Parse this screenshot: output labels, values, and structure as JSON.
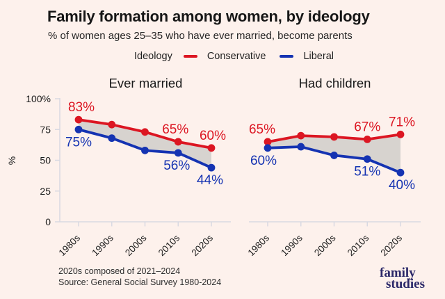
{
  "header": {
    "title": "Family formation among women, by ideology",
    "subtitle": "% of women ages 25–35 who have ever married, become parents"
  },
  "legend": {
    "label": "Ideology",
    "items": [
      {
        "name": "Conservative",
        "color": "#dc1622"
      },
      {
        "name": "Liberal",
        "color": "#1533b2"
      }
    ]
  },
  "chart_data": [
    {
      "type": "line",
      "title": "Ever married",
      "categories": [
        "1980s",
        "1990s",
        "2000s",
        "2010s",
        "2020s"
      ],
      "series": [
        {
          "name": "Conservative",
          "color": "#dc1622",
          "values": [
            83,
            79,
            73,
            65,
            60
          ],
          "point_labels": [
            {
              "i": 0,
              "text": "83%",
              "pos": "above",
              "dx": 4
            },
            {
              "i": 3,
              "text": "65%",
              "pos": "above",
              "dx": -4
            },
            {
              "i": 4,
              "text": "60%",
              "pos": "above",
              "dx": 2
            }
          ]
        },
        {
          "name": "Liberal",
          "color": "#1533b2",
          "values": [
            75,
            68,
            58,
            56,
            44
          ],
          "point_labels": [
            {
              "i": 0,
              "text": "75%",
              "pos": "below",
              "dx": 0
            },
            {
              "i": 3,
              "text": "56%",
              "pos": "below",
              "dx": -2
            },
            {
              "i": 4,
              "text": "44%",
              "pos": "below",
              "dx": -2
            }
          ]
        }
      ],
      "xlabel": "",
      "ylabel": "%",
      "ylim": [
        0,
        100
      ],
      "grid": false,
      "gap_fill_between_series": true
    },
    {
      "type": "line",
      "title": "Had children",
      "categories": [
        "1980s",
        "1990s",
        "2000s",
        "2010s",
        "2020s"
      ],
      "series": [
        {
          "name": "Conservative",
          "color": "#dc1622",
          "values": [
            65,
            70,
            69,
            67,
            71
          ],
          "point_labels": [
            {
              "i": 0,
              "text": "65%",
              "pos": "above",
              "dx": -8
            },
            {
              "i": 3,
              "text": "67%",
              "pos": "above",
              "dx": 0
            },
            {
              "i": 4,
              "text": "71%",
              "pos": "above",
              "dx": 2
            }
          ]
        },
        {
          "name": "Liberal",
          "color": "#1533b2",
          "values": [
            60,
            61,
            54,
            51,
            40
          ],
          "point_labels": [
            {
              "i": 0,
              "text": "60%",
              "pos": "below",
              "dx": -6
            },
            {
              "i": 3,
              "text": "51%",
              "pos": "below",
              "dx": 0
            },
            {
              "i": 4,
              "text": "40%",
              "pos": "below",
              "dx": 2
            }
          ]
        }
      ],
      "xlabel": "",
      "ylabel": "",
      "ylim": [
        0,
        100
      ],
      "grid": false,
      "gap_fill_between_series": true
    }
  ],
  "y_axis": {
    "label": "%",
    "ticks": [
      {
        "value": 0,
        "label": "0"
      },
      {
        "value": 25,
        "label": "25"
      },
      {
        "value": 50,
        "label": "50"
      },
      {
        "value": 75,
        "label": "75"
      },
      {
        "value": 100,
        "label": "100%"
      }
    ]
  },
  "footer": {
    "note": "2020s composed of 2021–2024",
    "source": "Source: General Social Survey 1980-2024"
  },
  "logo": {
    "line1": "family",
    "line2": "studies"
  },
  "colors": {
    "background": "#fdf1ec",
    "conservative": "#dc1622",
    "liberal": "#1533b2",
    "gap_area": "#d7d3cf",
    "axis_line": "#d9d9e2",
    "axis_text": "#1a1a1a",
    "logo_navy": "#2a2768"
  }
}
